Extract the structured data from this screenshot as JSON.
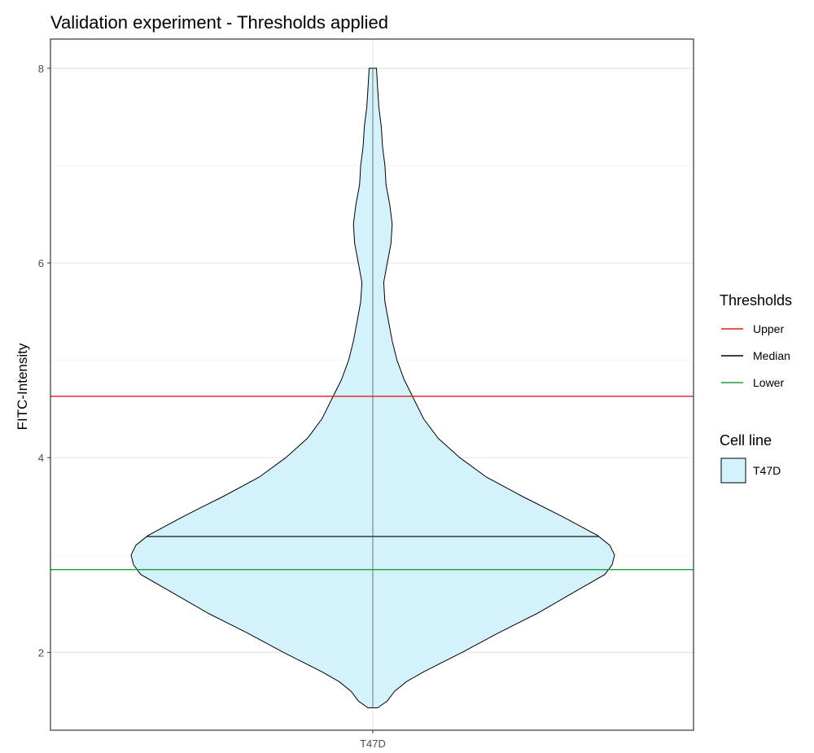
{
  "chart_data": {
    "type": "violin",
    "title": "Validation experiment - Thresholds applied",
    "xlabel": "",
    "ylabel": "FITC-Intensity",
    "categories": [
      "T47D"
    ],
    "ylim": [
      1.2,
      8.3
    ],
    "y_ticks": [
      2,
      4,
      6,
      8
    ],
    "y_tick_labels": [
      "2",
      "4",
      "6",
      "8"
    ],
    "grid": true,
    "violin": {
      "category": "T47D",
      "fill": "#d4f2fb",
      "stroke": "#000000",
      "y_min": 1.43,
      "y_max": 8.0,
      "density_profile": [
        [
          1.43,
          0.02
        ],
        [
          1.5,
          0.06
        ],
        [
          1.6,
          0.09
        ],
        [
          1.7,
          0.14
        ],
        [
          1.8,
          0.21
        ],
        [
          1.9,
          0.29
        ],
        [
          2.0,
          0.37
        ],
        [
          2.2,
          0.52
        ],
        [
          2.4,
          0.68
        ],
        [
          2.6,
          0.82
        ],
        [
          2.8,
          0.96
        ],
        [
          2.9,
          0.99
        ],
        [
          3.0,
          1.0
        ],
        [
          3.1,
          0.98
        ],
        [
          3.2,
          0.93
        ],
        [
          3.4,
          0.78
        ],
        [
          3.6,
          0.62
        ],
        [
          3.8,
          0.47
        ],
        [
          4.0,
          0.36
        ],
        [
          4.2,
          0.27
        ],
        [
          4.4,
          0.21
        ],
        [
          4.6,
          0.17
        ],
        [
          4.8,
          0.13
        ],
        [
          5.0,
          0.1
        ],
        [
          5.2,
          0.08
        ],
        [
          5.4,
          0.065
        ],
        [
          5.6,
          0.05
        ],
        [
          5.8,
          0.045
        ],
        [
          6.0,
          0.06
        ],
        [
          6.2,
          0.075
        ],
        [
          6.4,
          0.08
        ],
        [
          6.6,
          0.07
        ],
        [
          6.8,
          0.055
        ],
        [
          7.0,
          0.05
        ],
        [
          7.2,
          0.04
        ],
        [
          7.4,
          0.035
        ],
        [
          7.6,
          0.025
        ],
        [
          7.8,
          0.02
        ],
        [
          8.0,
          0.015
        ]
      ],
      "median_segment_y": 3.19
    },
    "thresholds": [
      {
        "name": "Upper",
        "value": 4.63,
        "color": "#e41a1c"
      },
      {
        "name": "Median",
        "value": 3.19,
        "color": "#000000"
      },
      {
        "name": "Lower",
        "value": 2.85,
        "color": "#1b9e3e"
      }
    ],
    "legend": {
      "position": "right",
      "thresholds_title": "Thresholds",
      "cell_line_title": "Cell line",
      "cell_line_items": [
        {
          "label": "T47D",
          "fill": "#d4f2fb"
        }
      ]
    }
  }
}
